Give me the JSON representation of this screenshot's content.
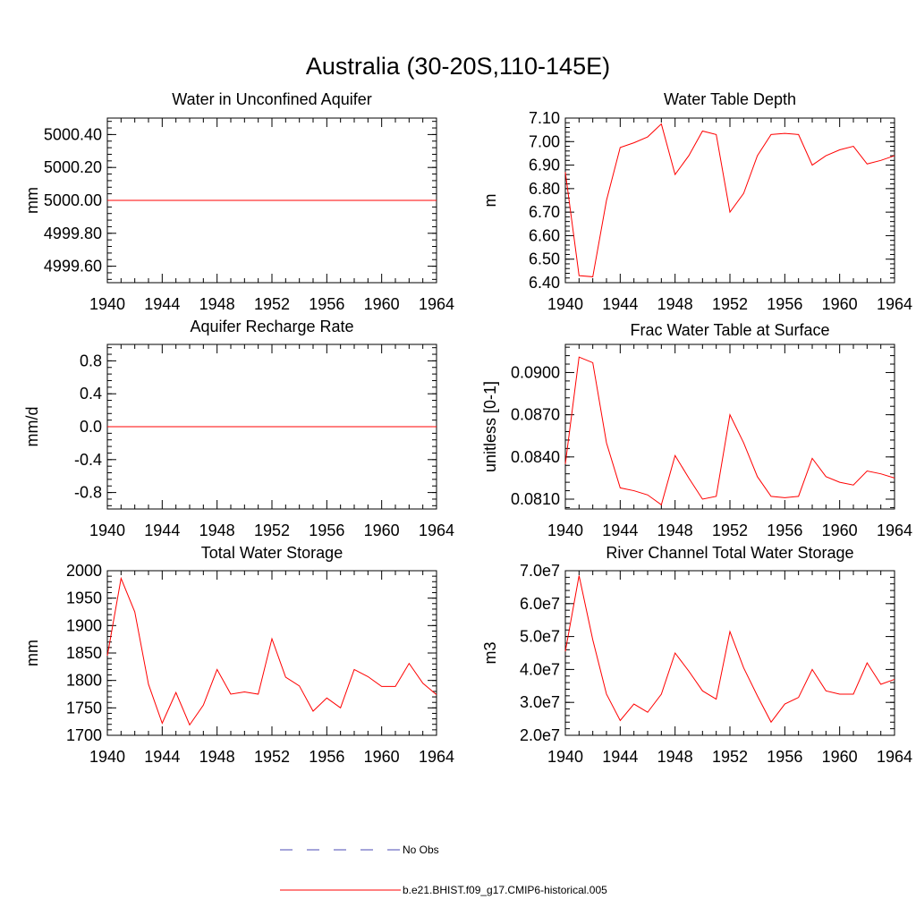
{
  "figure": {
    "title": "Australia (30-20S,110-145E)"
  },
  "colors": {
    "series": "#ff0000",
    "no_obs": "#4b4bb4",
    "axis": "#000000",
    "background": "#ffffff"
  },
  "chart_data": [
    {
      "type": "line",
      "title": "Water in Unconfined Aquifer",
      "xlabel": "",
      "ylabel": "mm",
      "xlim": [
        1940,
        1964
      ],
      "ylim": [
        4999.5,
        5000.5
      ],
      "x_ticks": [
        1940,
        1944,
        1948,
        1952,
        1956,
        1960,
        1964
      ],
      "y_ticks": [
        4999.6,
        4999.8,
        5000.0,
        5000.2,
        5000.4
      ],
      "y_tick_labels": [
        "4999.60",
        "4999.80",
        "5000.00",
        "5000.20",
        "5000.40"
      ],
      "x": [
        1940,
        1941,
        1942,
        1943,
        1944,
        1945,
        1946,
        1947,
        1948,
        1949,
        1950,
        1951,
        1952,
        1953,
        1954,
        1955,
        1956,
        1957,
        1958,
        1959,
        1960,
        1961,
        1962,
        1963,
        1964
      ],
      "series": [
        {
          "name": "b.e21.BHIST.f09_g17.CMIP6-historical.005",
          "values": [
            5000,
            5000,
            5000,
            5000,
            5000,
            5000,
            5000,
            5000,
            5000,
            5000,
            5000,
            5000,
            5000,
            5000,
            5000,
            5000,
            5000,
            5000,
            5000,
            5000,
            5000,
            5000,
            5000,
            5000,
            5000
          ]
        }
      ],
      "grid": false
    },
    {
      "type": "line",
      "title": "Water Table Depth",
      "xlabel": "",
      "ylabel": "m",
      "xlim": [
        1940,
        1964
      ],
      "ylim": [
        6.4,
        7.1
      ],
      "x_ticks": [
        1940,
        1944,
        1948,
        1952,
        1956,
        1960,
        1964
      ],
      "y_ticks": [
        6.4,
        6.5,
        6.6,
        6.7,
        6.8,
        6.9,
        7.0,
        7.1
      ],
      "y_tick_labels": [
        "6.40",
        "6.50",
        "6.60",
        "6.70",
        "6.80",
        "6.90",
        "7.00",
        "7.10"
      ],
      "x": [
        1940,
        1941,
        1942,
        1943,
        1944,
        1945,
        1946,
        1947,
        1948,
        1949,
        1950,
        1951,
        1952,
        1953,
        1954,
        1955,
        1956,
        1957,
        1958,
        1959,
        1960,
        1961,
        1962,
        1963,
        1964
      ],
      "series": [
        {
          "name": "b.e21.BHIST.f09_g17.CMIP6-historical.005",
          "values": [
            6.87,
            6.43,
            6.425,
            6.75,
            6.975,
            6.995,
            7.02,
            7.075,
            6.86,
            6.94,
            7.045,
            7.03,
            6.7,
            6.78,
            6.94,
            7.03,
            7.035,
            7.03,
            6.9,
            6.94,
            6.965,
            6.98,
            6.905,
            6.92,
            6.94
          ]
        }
      ],
      "grid": false
    },
    {
      "type": "line",
      "title": "Aquifer Recharge Rate",
      "xlabel": "",
      "ylabel": "mm/d",
      "xlim": [
        1940,
        1964
      ],
      "ylim": [
        -1.0,
        1.0
      ],
      "x_ticks": [
        1940,
        1944,
        1948,
        1952,
        1956,
        1960,
        1964
      ],
      "y_ticks": [
        -0.8,
        -0.4,
        0.0,
        0.4,
        0.8
      ],
      "y_tick_labels": [
        "-0.8",
        "-0.4",
        "0.0",
        "0.4",
        "0.8"
      ],
      "x": [
        1940,
        1941,
        1942,
        1943,
        1944,
        1945,
        1946,
        1947,
        1948,
        1949,
        1950,
        1951,
        1952,
        1953,
        1954,
        1955,
        1956,
        1957,
        1958,
        1959,
        1960,
        1961,
        1962,
        1963,
        1964
      ],
      "series": [
        {
          "name": "b.e21.BHIST.f09_g17.CMIP6-historical.005",
          "values": [
            0,
            0,
            0,
            0,
            0,
            0,
            0,
            0,
            0,
            0,
            0,
            0,
            0,
            0,
            0,
            0,
            0,
            0,
            0,
            0,
            0,
            0,
            0,
            0,
            0
          ]
        }
      ],
      "grid": false
    },
    {
      "type": "line",
      "title": "Frac Water Table at Surface",
      "xlabel": "",
      "ylabel": "unitless [0-1]",
      "xlim": [
        1940,
        1964
      ],
      "ylim": [
        0.0803,
        0.092
      ],
      "x_ticks": [
        1940,
        1944,
        1948,
        1952,
        1956,
        1960,
        1964
      ],
      "y_ticks": [
        0.081,
        0.084,
        0.087,
        0.09
      ],
      "y_tick_labels": [
        "0.0810",
        "0.0840",
        "0.0870",
        "0.0900"
      ],
      "x": [
        1940,
        1941,
        1942,
        1943,
        1944,
        1945,
        1946,
        1947,
        1948,
        1949,
        1950,
        1951,
        1952,
        1953,
        1954,
        1955,
        1956,
        1957,
        1958,
        1959,
        1960,
        1961,
        1962,
        1963,
        1964
      ],
      "series": [
        {
          "name": "b.e21.BHIST.f09_g17.CMIP6-historical.005",
          "values": [
            0.0835,
            0.0911,
            0.0907,
            0.085,
            0.0818,
            0.0816,
            0.0813,
            0.0806,
            0.0841,
            0.0825,
            0.081,
            0.0812,
            0.087,
            0.085,
            0.0826,
            0.0812,
            0.0811,
            0.0812,
            0.0839,
            0.0826,
            0.0822,
            0.082,
            0.083,
            0.0828,
            0.0825
          ]
        }
      ],
      "grid": false
    },
    {
      "type": "line",
      "title": "Total Water Storage",
      "xlabel": "",
      "ylabel": "mm",
      "xlim": [
        1940,
        1964
      ],
      "ylim": [
        1700,
        2000
      ],
      "x_ticks": [
        1940,
        1944,
        1948,
        1952,
        1956,
        1960,
        1964
      ],
      "y_ticks": [
        1700,
        1750,
        1800,
        1850,
        1900,
        1950,
        2000
      ],
      "y_tick_labels": [
        "1700",
        "1750",
        "1800",
        "1850",
        "1900",
        "1950",
        "2000"
      ],
      "x": [
        1940,
        1941,
        1942,
        1943,
        1944,
        1945,
        1946,
        1947,
        1948,
        1949,
        1950,
        1951,
        1952,
        1953,
        1954,
        1955,
        1956,
        1957,
        1958,
        1959,
        1960,
        1961,
        1962,
        1963,
        1964
      ],
      "series": [
        {
          "name": "b.e21.BHIST.f09_g17.CMIP6-historical.005",
          "values": [
            1845,
            1986,
            1925,
            1793,
            1722,
            1778,
            1719,
            1755,
            1820,
            1775,
            1779,
            1775,
            1876,
            1806,
            1790,
            1744,
            1768,
            1750,
            1820,
            1807,
            1789,
            1789,
            1831,
            1795,
            1774
          ]
        }
      ],
      "grid": false
    },
    {
      "type": "line",
      "title": "River Channel Total Water Storage",
      "xlabel": "",
      "ylabel": "m3",
      "xlim": [
        1940,
        1964
      ],
      "ylim": [
        20000000.0,
        70000000.0
      ],
      "x_ticks": [
        1940,
        1944,
        1948,
        1952,
        1956,
        1960,
        1964
      ],
      "y_ticks": [
        20000000.0,
        30000000.0,
        40000000.0,
        50000000.0,
        60000000.0,
        70000000.0
      ],
      "y_tick_labels": [
        "2.0e7",
        "3.0e7",
        "4.0e7",
        "5.0e7",
        "6.0e7",
        "7.0e7"
      ],
      "x": [
        1940,
        1941,
        1942,
        1943,
        1944,
        1945,
        1946,
        1947,
        1948,
        1949,
        1950,
        1951,
        1952,
        1953,
        1954,
        1955,
        1956,
        1957,
        1958,
        1959,
        1960,
        1961,
        1962,
        1963,
        1964
      ],
      "series": [
        {
          "name": "b.e21.BHIST.f09_g17.CMIP6-historical.005",
          "values": [
            45500000.0,
            68500000.0,
            49000000.0,
            32500000.0,
            24500000.0,
            29500000.0,
            27000000.0,
            32500000.0,
            45000000.0,
            39500000.0,
            33500000.0,
            31000000.0,
            51500000.0,
            40500000.0,
            32000000.0,
            24000000.0,
            29500000.0,
            31500000.0,
            40000000.0,
            33500000.0,
            32500000.0,
            32500000.0,
            42000000.0,
            35500000.0,
            37000000.0
          ]
        }
      ],
      "grid": false
    }
  ],
  "legend": {
    "items": [
      {
        "label": "No Obs",
        "style": "dashed"
      },
      {
        "label": "b.e21.BHIST.f09_g17.CMIP6-historical.005",
        "style": "solid"
      }
    ]
  }
}
